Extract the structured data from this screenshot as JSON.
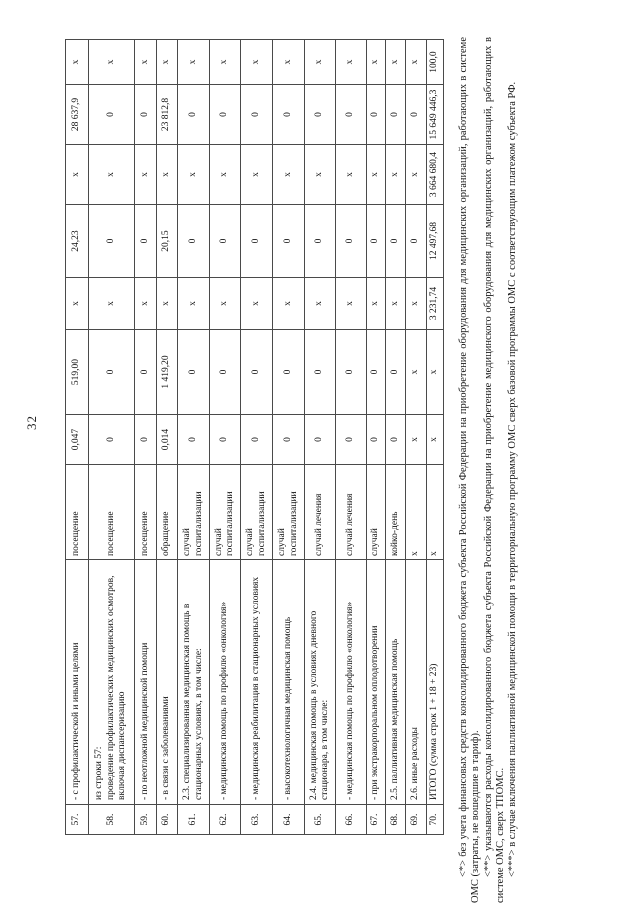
{
  "page": {
    "number": "32"
  },
  "colors": {
    "background": "#ffffff",
    "text": "#111111",
    "grid_border": "#4a4a4a"
  },
  "table": {
    "rows": [
      [
        "57.",
        "- с профилактической и иными целями",
        "посещение",
        "0,047",
        "519,00",
        "х",
        "24,23",
        "х",
        "28 637,9",
        "х"
      ],
      [
        "58.",
        "из строки 57:\nпроведение профилактических медицинских осмотров, включая диспансеризацию",
        "посещение",
        "0",
        "0",
        "х",
        "0",
        "х",
        "0",
        "х"
      ],
      [
        "59.",
        "- по неотложной медицинской помощи",
        "посещение",
        "0",
        "0",
        "х",
        "0",
        "х",
        "0",
        "х"
      ],
      [
        "60.",
        "- в связи с заболеваниями",
        "обращение",
        "0,014",
        "1 419,20",
        "х",
        "20,15",
        "х",
        "23 812,8",
        "х"
      ],
      [
        "61.",
        "2.3. специализированная медицинская помощь в стационарных условиях, в том числе:",
        "случай госпитализации",
        "0",
        "0",
        "х",
        "0",
        "х",
        "0",
        "х"
      ],
      [
        "62.",
        "- медицинская помощь по профилю «онкология»",
        "случай госпитализации",
        "0",
        "0",
        "х",
        "0",
        "х",
        "0",
        "х"
      ],
      [
        "63.",
        "- медицинская реабилитация в стационарных условиях",
        "случай госпитализации",
        "0",
        "0",
        "х",
        "0",
        "х",
        "0",
        "х"
      ],
      [
        "64.",
        "- высокотехнологичная медицинская помощь",
        "случай госпитализации",
        "0",
        "0",
        "х",
        "0",
        "х",
        "0",
        "х"
      ],
      [
        "65.",
        "2.4. медицинская помощь в условиях дневного стационара, в том числе:",
        "случай лечения",
        "0",
        "0",
        "х",
        "0",
        "х",
        "0",
        "х"
      ],
      [
        "66.",
        "- медицинская помощь по профилю «онкология»",
        "случай лечения",
        "0",
        "0",
        "х",
        "0",
        "х",
        "0",
        "х"
      ],
      [
        "67.",
        "- при экстракорпоральном оплодотворении",
        "случай",
        "0",
        "0",
        "х",
        "0",
        "х",
        "0",
        "х"
      ],
      [
        "68.",
        "2.5. паллиативная медицинская помощь",
        "койко-день",
        "0",
        "0",
        "х",
        "0",
        "х",
        "0",
        "х"
      ],
      [
        "69.",
        "2.6. иные расходы",
        "х",
        "х",
        "х",
        "х",
        "0",
        "х",
        "0",
        "х"
      ],
      [
        "70.",
        "ИТОГО (сумма строк 1 + 18 + 23)",
        "х",
        "х",
        "х",
        "3 231,74",
        "12 497,68",
        "3 664 680,4",
        "15 649 446,3",
        "100,0"
      ]
    ]
  },
  "footnotes": [
    "<*> без учета финансовых средств консолидированного бюджета субъекта Российской Федерации на приобретение оборудования для медицинских организаций, работающих в системе ОМС (затраты, не вошедшие в тариф).",
    "<**> указываются расходы консолидированного бюджета субъекта Российской Федерации на приобретение медицинского оборудования для медицинских организаций, работающих в системе ОМС, сверх ТПОМС.",
    "<***> в случае включения паллиативной медицинской помощи в территориальную программу ОМС сверх базовой программы ОМС с соответствующим платежом субъекта РФ."
  ]
}
